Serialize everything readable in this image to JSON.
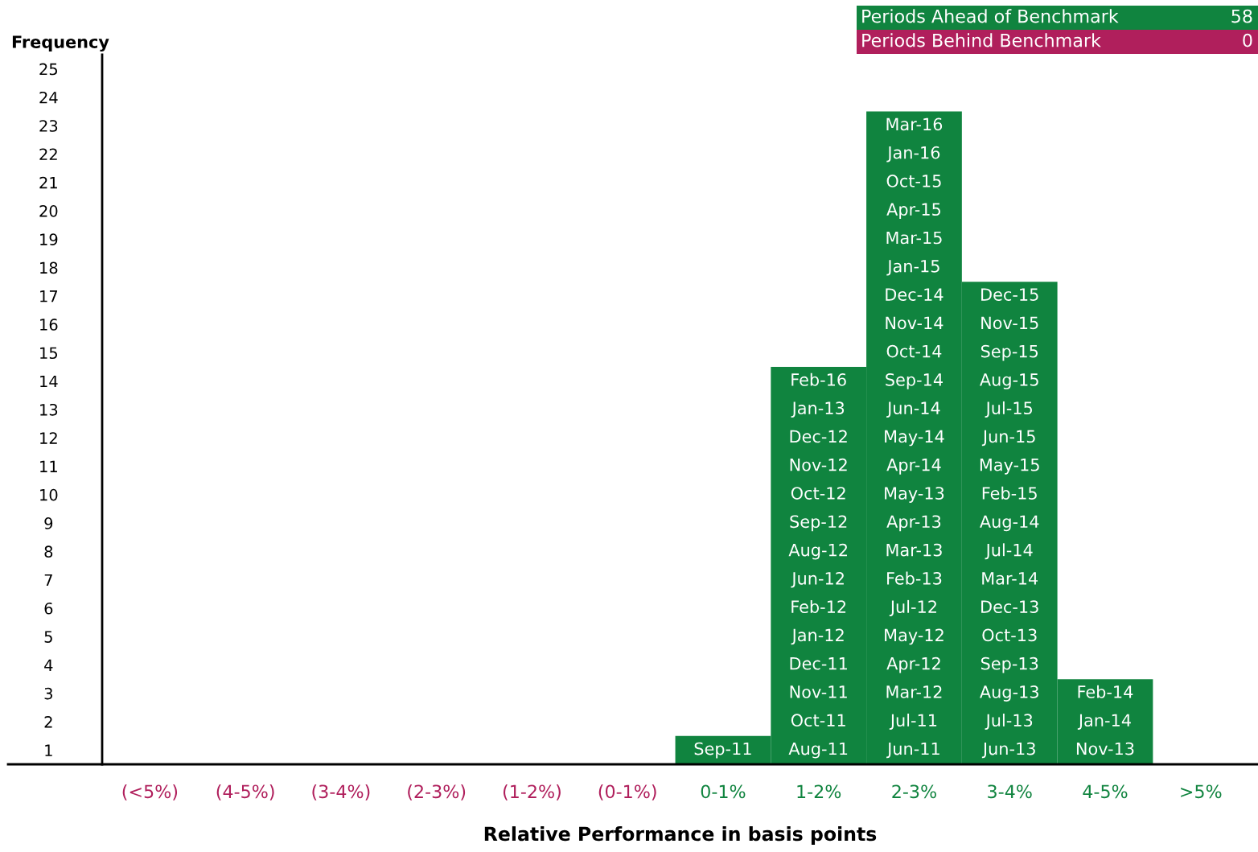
{
  "chart_data": {
    "type": "bar",
    "ylabel": "Frequency",
    "xlabel": "Relative Performance in basis points",
    "categories": [
      "(<5%)",
      "(4-5%)",
      "(3-4%)",
      "(2-3%)",
      "(1-2%)",
      "(0-1%)",
      "0-1%",
      "1-2%",
      "2-3%",
      "3-4%",
      "4-5%",
      ">5%"
    ],
    "series": [
      {
        "name": "Periods Ahead of Benchmark",
        "color": "#10843f",
        "values": [
          null,
          null,
          null,
          null,
          null,
          null,
          1,
          14,
          23,
          17,
          3,
          0
        ]
      },
      {
        "name": "Periods Behind Benchmark",
        "color": "#b01f5c",
        "values": [
          0,
          0,
          0,
          0,
          0,
          0,
          null,
          null,
          null,
          null,
          null,
          null
        ]
      }
    ],
    "ylim": [
      0,
      25
    ],
    "yticks": [
      {
        "value": 0.5,
        "label": "1"
      },
      {
        "value": 1.5,
        "label": "2"
      },
      {
        "value": 2.5,
        "label": "3"
      },
      {
        "value": 3.5,
        "label": "4"
      },
      {
        "value": 4.5,
        "label": "5"
      },
      {
        "value": 5.5,
        "label": "6"
      },
      {
        "value": 6.5,
        "label": "7"
      },
      {
        "value": 7.5,
        "label": "8"
      },
      {
        "value": 8.5,
        "label": "9"
      },
      {
        "value": 9.5,
        "label": "10"
      },
      {
        "value": 10.5,
        "label": "11"
      },
      {
        "value": 11.5,
        "label": "12"
      },
      {
        "value": 12.5,
        "label": "13"
      },
      {
        "value": 13.5,
        "label": "14"
      },
      {
        "value": 14.5,
        "label": "15"
      },
      {
        "value": 15.5,
        "label": "16"
      },
      {
        "value": 16.5,
        "label": "17"
      },
      {
        "value": 17.5,
        "label": "18"
      },
      {
        "value": 18.5,
        "label": "19"
      },
      {
        "value": 19.5,
        "label": "20"
      },
      {
        "value": 20.5,
        "label": "21"
      },
      {
        "value": 21.5,
        "label": "22"
      },
      {
        "value": 22.5,
        "label": "23"
      },
      {
        "value": 23.5,
        "label": "24"
      },
      {
        "value": 24.5,
        "label": "25"
      }
    ],
    "grid": false,
    "legend": "top right",
    "annotations": [
      "58",
      "0",
      "Sep-11",
      "Aug-11",
      "Oct-11",
      "Nov-11",
      "Dec-11",
      "Jan-12",
      "Feb-12",
      "Jun-12",
      "Aug-12",
      "Sep-12",
      "Oct-12",
      "Nov-12",
      "Dec-12",
      "Jan-13",
      "Feb-16",
      "Jun-11",
      "Jul-11",
      "Mar-12",
      "Apr-12",
      "May-12",
      "Jul-12",
      "Feb-13",
      "Mar-13",
      "Apr-13",
      "May-13",
      "Apr-14",
      "May-14",
      "Jun-14",
      "Sep-14",
      "Oct-14",
      "Nov-14",
      "Dec-14",
      "Jan-15",
      "Mar-15",
      "Apr-15",
      "Oct-15",
      "Jan-16",
      "Mar-16",
      "Jun-13",
      "Jul-13",
      "Aug-13",
      "Sep-13",
      "Oct-13",
      "Dec-13",
      "Mar-14",
      "Jul-14",
      "Aug-14",
      "Feb-15",
      "May-15",
      "Jun-15",
      "Jul-15",
      "Aug-15",
      "Sep-15",
      "Nov-15",
      "Dec-15",
      "Nov-13",
      "Jan-14",
      "Feb-14"
    ]
  }
}
